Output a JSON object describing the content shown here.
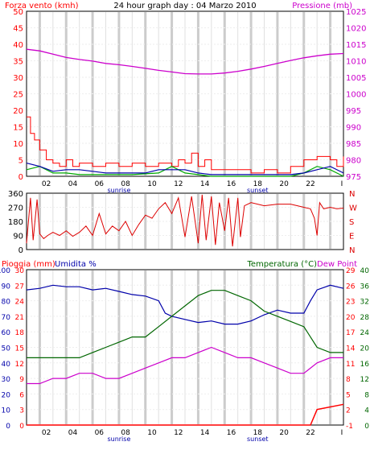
{
  "title": "24 hour graph day : 04 Marzo 2010",
  "colors": {
    "wind": "#ff0000",
    "pressure": "#cc00cc",
    "direction": "#dd0000",
    "rain": "#ff0000",
    "humidity": "#0000aa",
    "temperature": "#006600",
    "dewpoint": "#cc00cc",
    "series_green": "#00aa00",
    "series_blue": "#0000aa",
    "grid": "#d4d4d4",
    "frame": "#000000"
  },
  "time_axis": {
    "ticks": [
      "02",
      "04",
      "06",
      "08",
      "10",
      "12",
      "14",
      "16",
      "18",
      "20",
      "22",
      "I"
    ],
    "sunrise_label": "sunrise",
    "sunset_label": "sunset"
  },
  "chart_data": [
    {
      "type": "line",
      "name": "wind-pressure",
      "title": "24 hour graph day : 04 Marzo 2010",
      "left_label": "Forza vento (kmh)",
      "right_label": "Pressione (mb)",
      "left_ticks": [
        "0",
        "5",
        "10",
        "15",
        "20",
        "25",
        "30",
        "35",
        "40",
        "45",
        "50"
      ],
      "right_ticks": [
        "975",
        "980",
        "985",
        "990",
        "995",
        "1000",
        "1005",
        "1010",
        "1015",
        "1020",
        "1025"
      ],
      "ylim_left": [
        0,
        50
      ],
      "ylim_right": [
        975,
        1025
      ],
      "pressure": [
        {
          "x": 0,
          "y": 1013.5
        },
        {
          "x": 1,
          "y": 1013
        },
        {
          "x": 2,
          "y": 1012
        },
        {
          "x": 3,
          "y": 1011
        },
        {
          "x": 4,
          "y": 1010.4
        },
        {
          "x": 5,
          "y": 1009.9
        },
        {
          "x": 6,
          "y": 1009.2
        },
        {
          "x": 7,
          "y": 1008.8
        },
        {
          "x": 8,
          "y": 1008.3
        },
        {
          "x": 9,
          "y": 1007.7
        },
        {
          "x": 10,
          "y": 1007.1
        },
        {
          "x": 11,
          "y": 1006.6
        },
        {
          "x": 12,
          "y": 1006.1
        },
        {
          "x": 13,
          "y": 1006
        },
        {
          "x": 14,
          "y": 1006
        },
        {
          "x": 15,
          "y": 1006.3
        },
        {
          "x": 16,
          "y": 1006.8
        },
        {
          "x": 17,
          "y": 1007.5
        },
        {
          "x": 18,
          "y": 1008.3
        },
        {
          "x": 19,
          "y": 1009.2
        },
        {
          "x": 20,
          "y": 1010.1
        },
        {
          "x": 21,
          "y": 1010.9
        },
        {
          "x": 22,
          "y": 1011.5
        },
        {
          "x": 23,
          "y": 1012
        },
        {
          "x": 24,
          "y": 1012.2
        }
      ],
      "wind_gust": [
        {
          "x": 0,
          "y": 18
        },
        {
          "x": 0.3,
          "y": 13
        },
        {
          "x": 0.6,
          "y": 11
        },
        {
          "x": 1,
          "y": 8
        },
        {
          "x": 1.5,
          "y": 5
        },
        {
          "x": 2,
          "y": 4
        },
        {
          "x": 2.5,
          "y": 3
        },
        {
          "x": 3,
          "y": 5
        },
        {
          "x": 3.5,
          "y": 3
        },
        {
          "x": 4,
          "y": 4
        },
        {
          "x": 5,
          "y": 3
        },
        {
          "x": 6,
          "y": 4
        },
        {
          "x": 7,
          "y": 3
        },
        {
          "x": 8,
          "y": 4
        },
        {
          "x": 9,
          "y": 3
        },
        {
          "x": 10,
          "y": 4
        },
        {
          "x": 11,
          "y": 3
        },
        {
          "x": 11.5,
          "y": 5
        },
        {
          "x": 12,
          "y": 4
        },
        {
          "x": 12.5,
          "y": 7
        },
        {
          "x": 13,
          "y": 3
        },
        {
          "x": 13.5,
          "y": 5
        },
        {
          "x": 14,
          "y": 2
        },
        {
          "x": 15,
          "y": 2
        },
        {
          "x": 16,
          "y": 2
        },
        {
          "x": 17,
          "y": 1
        },
        {
          "x": 18,
          "y": 2
        },
        {
          "x": 19,
          "y": 1
        },
        {
          "x": 20,
          "y": 3
        },
        {
          "x": 21,
          "y": 5
        },
        {
          "x": 22,
          "y": 6
        },
        {
          "x": 23,
          "y": 5
        },
        {
          "x": 23.5,
          "y": 3
        },
        {
          "x": 24,
          "y": 6
        }
      ],
      "wind_avg_blue": [
        {
          "x": 0,
          "y": 4
        },
        {
          "x": 1,
          "y": 3
        },
        {
          "x": 2,
          "y": 1.5
        },
        {
          "x": 3,
          "y": 2
        },
        {
          "x": 4,
          "y": 2
        },
        {
          "x": 5,
          "y": 1.5
        },
        {
          "x": 6,
          "y": 1
        },
        {
          "x": 7,
          "y": 1
        },
        {
          "x": 8,
          "y": 1
        },
        {
          "x": 9,
          "y": 1
        },
        {
          "x": 10,
          "y": 2
        },
        {
          "x": 11,
          "y": 2
        },
        {
          "x": 12,
          "y": 2
        },
        {
          "x": 13,
          "y": 1
        },
        {
          "x": 14,
          "y": 0.5
        },
        {
          "x": 15,
          "y": 0.5
        },
        {
          "x": 16,
          "y": 0.5
        },
        {
          "x": 17,
          "y": 0.5
        },
        {
          "x": 18,
          "y": 0.5
        },
        {
          "x": 19,
          "y": 0.5
        },
        {
          "x": 20,
          "y": 0.5
        },
        {
          "x": 21,
          "y": 1
        },
        {
          "x": 22,
          "y": 2
        },
        {
          "x": 23,
          "y": 3
        },
        {
          "x": 24,
          "y": 1
        }
      ],
      "wind_green": [
        {
          "x": 0,
          "y": 2
        },
        {
          "x": 1,
          "y": 3
        },
        {
          "x": 2,
          "y": 1
        },
        {
          "x": 3,
          "y": 1
        },
        {
          "x": 4,
          "y": 0.5
        },
        {
          "x": 6,
          "y": 0.5
        },
        {
          "x": 8,
          "y": 0.5
        },
        {
          "x": 10,
          "y": 1
        },
        {
          "x": 11,
          "y": 3
        },
        {
          "x": 12,
          "y": 1
        },
        {
          "x": 14,
          "y": 0
        },
        {
          "x": 16,
          "y": 0
        },
        {
          "x": 18,
          "y": 0
        },
        {
          "x": 20,
          "y": 0
        },
        {
          "x": 21,
          "y": 1
        },
        {
          "x": 22,
          "y": 3
        },
        {
          "x": 23,
          "y": 2
        },
        {
          "x": 24,
          "y": 0
        }
      ]
    },
    {
      "type": "line",
      "name": "wind-direction",
      "left_ticks": [
        "0",
        "90",
        "180",
        "270",
        "360"
      ],
      "right_ticks": [
        "N",
        "E",
        "S",
        "W",
        "N"
      ],
      "ylim": [
        0,
        360
      ],
      "direction": [
        {
          "x": 0,
          "y": 40
        },
        {
          "x": 0.3,
          "y": 330
        },
        {
          "x": 0.5,
          "y": 60
        },
        {
          "x": 0.8,
          "y": 320
        },
        {
          "x": 1,
          "y": 100
        },
        {
          "x": 1.3,
          "y": 70
        },
        {
          "x": 1.6,
          "y": 90
        },
        {
          "x": 2,
          "y": 110
        },
        {
          "x": 2.5,
          "y": 90
        },
        {
          "x": 3,
          "y": 120
        },
        {
          "x": 3.5,
          "y": 85
        },
        {
          "x": 4,
          "y": 110
        },
        {
          "x": 4.5,
          "y": 150
        },
        {
          "x": 5,
          "y": 90
        },
        {
          "x": 5.5,
          "y": 230
        },
        {
          "x": 6,
          "y": 100
        },
        {
          "x": 6.5,
          "y": 150
        },
        {
          "x": 7,
          "y": 120
        },
        {
          "x": 7.5,
          "y": 180
        },
        {
          "x": 8,
          "y": 90
        },
        {
          "x": 8.5,
          "y": 160
        },
        {
          "x": 9,
          "y": 220
        },
        {
          "x": 9.5,
          "y": 200
        },
        {
          "x": 10,
          "y": 260
        },
        {
          "x": 10.5,
          "y": 300
        },
        {
          "x": 11,
          "y": 230
        },
        {
          "x": 11.5,
          "y": 330
        },
        {
          "x": 12,
          "y": 80
        },
        {
          "x": 12.5,
          "y": 340
        },
        {
          "x": 13,
          "y": 40
        },
        {
          "x": 13.3,
          "y": 350
        },
        {
          "x": 13.6,
          "y": 60
        },
        {
          "x": 14,
          "y": 340
        },
        {
          "x": 14.3,
          "y": 30
        },
        {
          "x": 14.6,
          "y": 300
        },
        {
          "x": 15,
          "y": 120
        },
        {
          "x": 15.3,
          "y": 330
        },
        {
          "x": 15.6,
          "y": 20
        },
        {
          "x": 16,
          "y": 330
        },
        {
          "x": 16.2,
          "y": 80
        },
        {
          "x": 16.5,
          "y": 280
        },
        {
          "x": 17,
          "y": 300
        },
        {
          "x": 18,
          "y": 280
        },
        {
          "x": 19,
          "y": 290
        },
        {
          "x": 20,
          "y": 290
        },
        {
          "x": 21,
          "y": 270
        },
        {
          "x": 21.5,
          "y": 260
        },
        {
          "x": 21.8,
          "y": 200
        },
        {
          "x": 22,
          "y": 90
        },
        {
          "x": 22.2,
          "y": 300
        },
        {
          "x": 22.5,
          "y": 260
        },
        {
          "x": 23,
          "y": 270
        },
        {
          "x": 23.5,
          "y": 260
        },
        {
          "x": 24,
          "y": 265
        }
      ]
    },
    {
      "type": "line",
      "name": "rain-humidity-temperature",
      "rain_label": "Pioggia (mm)",
      "humidity_label": "Umidita %",
      "temperature_label": "Temperatura (°C)",
      "dewpoint_label": "Dew Point",
      "rain_ticks": [
        "0",
        "3",
        "6",
        "9",
        "12",
        "15",
        "18",
        "21",
        "24",
        "27",
        "30"
      ],
      "humidity_ticks": [
        "0",
        "10",
        "20",
        "30",
        "40",
        "50",
        "60",
        "70",
        "80",
        "90",
        "100"
      ],
      "temp_ticks_right1": [
        "-1",
        "2",
        "5",
        "8",
        "11",
        "14",
        "17",
        "20",
        "23",
        "26",
        "29"
      ],
      "temp_ticks_right2": [
        "0",
        "4",
        "8",
        "12",
        "16",
        "20",
        "24",
        "28",
        "32",
        "36",
        "40"
      ],
      "ylim_humidity": [
        0,
        100
      ],
      "humidity": [
        {
          "x": 0,
          "y": 87
        },
        {
          "x": 1,
          "y": 88
        },
        {
          "x": 2,
          "y": 90
        },
        {
          "x": 3,
          "y": 89
        },
        {
          "x": 4,
          "y": 89
        },
        {
          "x": 5,
          "y": 87
        },
        {
          "x": 6,
          "y": 88
        },
        {
          "x": 7,
          "y": 86
        },
        {
          "x": 8,
          "y": 84
        },
        {
          "x": 9,
          "y": 83
        },
        {
          "x": 10,
          "y": 80
        },
        {
          "x": 10.5,
          "y": 72
        },
        {
          "x": 11,
          "y": 70
        },
        {
          "x": 12,
          "y": 68
        },
        {
          "x": 13,
          "y": 66
        },
        {
          "x": 14,
          "y": 67
        },
        {
          "x": 15,
          "y": 65
        },
        {
          "x": 16,
          "y": 65
        },
        {
          "x": 17,
          "y": 67
        },
        {
          "x": 18,
          "y": 71
        },
        {
          "x": 19,
          "y": 74
        },
        {
          "x": 20,
          "y": 72
        },
        {
          "x": 21,
          "y": 72
        },
        {
          "x": 21.5,
          "y": 80
        },
        {
          "x": 22,
          "y": 87
        },
        {
          "x": 23,
          "y": 90
        },
        {
          "x": 24,
          "y": 88
        }
      ],
      "temperature": [
        {
          "x": 0,
          "y": 12
        },
        {
          "x": 1,
          "y": 12
        },
        {
          "x": 2,
          "y": 12
        },
        {
          "x": 3,
          "y": 12
        },
        {
          "x": 4,
          "y": 12
        },
        {
          "x": 5,
          "y": 13
        },
        {
          "x": 6,
          "y": 14
        },
        {
          "x": 7,
          "y": 15
        },
        {
          "x": 8,
          "y": 16
        },
        {
          "x": 9,
          "y": 16
        },
        {
          "x": 10,
          "y": 18
        },
        {
          "x": 11,
          "y": 20
        },
        {
          "x": 12,
          "y": 22
        },
        {
          "x": 13,
          "y": 24
        },
        {
          "x": 14,
          "y": 25
        },
        {
          "x": 15,
          "y": 25
        },
        {
          "x": 16,
          "y": 24
        },
        {
          "x": 17,
          "y": 23
        },
        {
          "x": 18,
          "y": 21
        },
        {
          "x": 19,
          "y": 20
        },
        {
          "x": 20,
          "y": 19
        },
        {
          "x": 21,
          "y": 18
        },
        {
          "x": 22,
          "y": 14
        },
        {
          "x": 23,
          "y": 13
        },
        {
          "x": 24,
          "y": 13
        }
      ],
      "dewpoint": [
        {
          "x": 0,
          "y": 7
        },
        {
          "x": 1,
          "y": 7
        },
        {
          "x": 2,
          "y": 8
        },
        {
          "x": 3,
          "y": 8
        },
        {
          "x": 4,
          "y": 9
        },
        {
          "x": 5,
          "y": 9
        },
        {
          "x": 6,
          "y": 8
        },
        {
          "x": 7,
          "y": 8
        },
        {
          "x": 8,
          "y": 9
        },
        {
          "x": 9,
          "y": 10
        },
        {
          "x": 10,
          "y": 11
        },
        {
          "x": 11,
          "y": 12
        },
        {
          "x": 12,
          "y": 12
        },
        {
          "x": 13,
          "y": 13
        },
        {
          "x": 14,
          "y": 14
        },
        {
          "x": 15,
          "y": 13
        },
        {
          "x": 16,
          "y": 12
        },
        {
          "x": 17,
          "y": 12
        },
        {
          "x": 18,
          "y": 11
        },
        {
          "x": 19,
          "y": 10
        },
        {
          "x": 20,
          "y": 9
        },
        {
          "x": 21,
          "y": 9
        },
        {
          "x": 22,
          "y": 11
        },
        {
          "x": 23,
          "y": 12
        },
        {
          "x": 24,
          "y": 12
        }
      ],
      "rain": [
        {
          "x": 0,
          "y": 0
        },
        {
          "x": 21.5,
          "y": 0
        },
        {
          "x": 22,
          "y": 3
        },
        {
          "x": 24,
          "y": 4
        }
      ]
    }
  ]
}
